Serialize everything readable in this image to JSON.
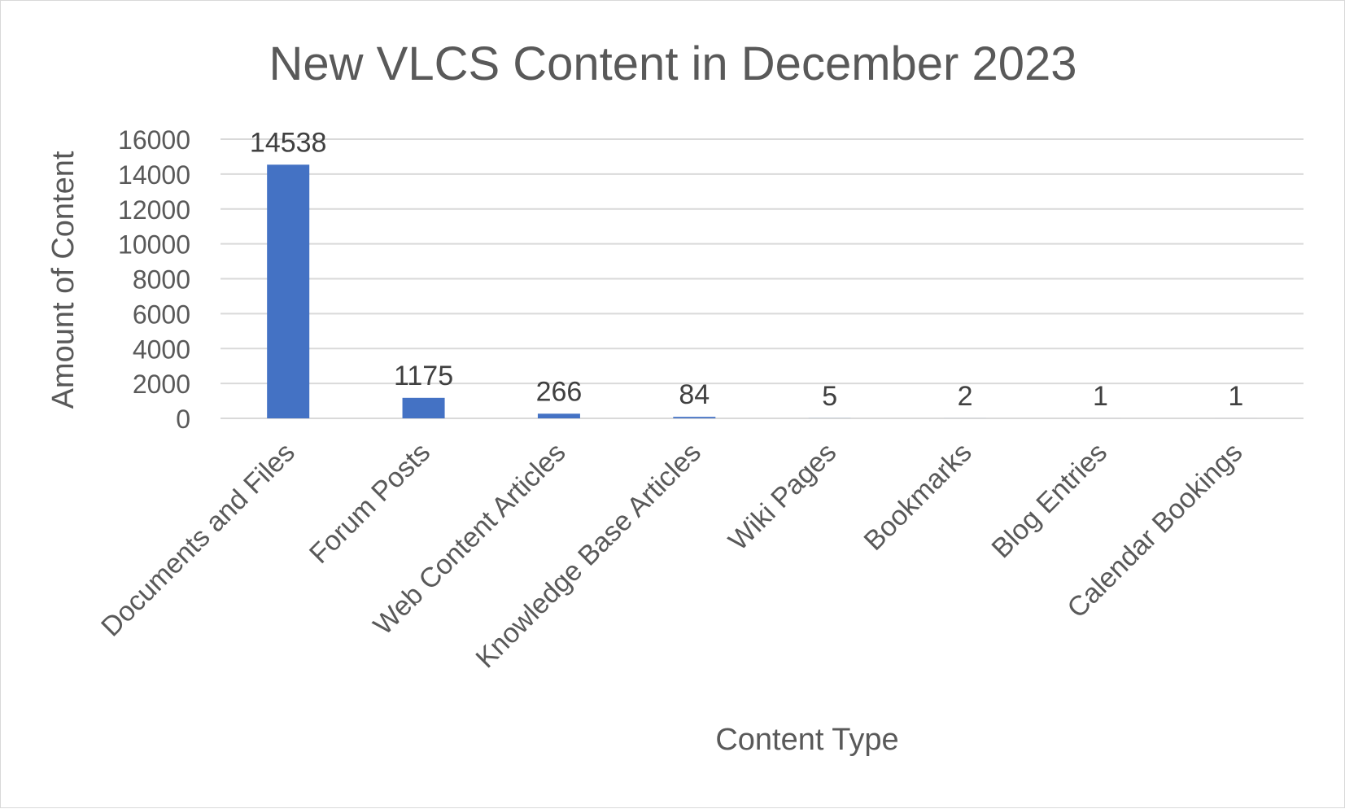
{
  "chart_data": {
    "type": "bar",
    "title": "New VLCS Content in December 2023",
    "xlabel": "Content Type",
    "ylabel": "Amount of Content",
    "categories": [
      "Documents and Files",
      "Forum Posts",
      "Web Content Articles",
      "Knowledge Base Articles",
      "Wiki Pages",
      "Bookmarks",
      "Blog Entries",
      "Calendar Bookings"
    ],
    "values": [
      14538,
      1175,
      266,
      84,
      5,
      2,
      1,
      1
    ],
    "ylim": [
      0,
      16000
    ],
    "yticks": [
      "0",
      "2000",
      "4000",
      "6000",
      "8000",
      "10000",
      "12000",
      "14000",
      "16000"
    ],
    "grid": true,
    "legend": "none",
    "bar_color": "#4472c4"
  }
}
